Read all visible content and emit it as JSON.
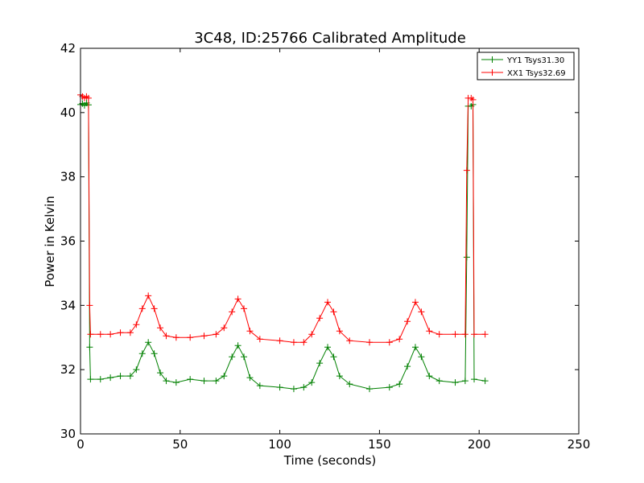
{
  "chart_data": {
    "type": "line",
    "title": "3C48, ID:25766 Calibrated Amplitude",
    "xlabel": "Time (seconds)",
    "ylabel": "Power in Kelvin",
    "xlim": [
      0,
      250
    ],
    "ylim": [
      30,
      42
    ],
    "xticks": [
      "0",
      "50",
      "100",
      "150",
      "200",
      "250"
    ],
    "yticks": [
      "30",
      "32",
      "34",
      "36",
      "38",
      "40",
      "42"
    ],
    "grid": false,
    "legend_position": "top-right",
    "series": [
      {
        "name": "YY1 Tsys31.30",
        "color": "#008000",
        "marker": "+",
        "points": [
          [
            0,
            40.25
          ],
          [
            1,
            40.28
          ],
          [
            2,
            40.22
          ],
          [
            3,
            40.3
          ],
          [
            4,
            40.24
          ],
          [
            4.6,
            32.7
          ],
          [
            5,
            31.7
          ],
          [
            10,
            31.7
          ],
          [
            15,
            31.75
          ],
          [
            20,
            31.8
          ],
          [
            25,
            31.8
          ],
          [
            28,
            32.0
          ],
          [
            31,
            32.5
          ],
          [
            34,
            32.85
          ],
          [
            37,
            32.5
          ],
          [
            40,
            31.9
          ],
          [
            43,
            31.65
          ],
          [
            48,
            31.6
          ],
          [
            55,
            31.7
          ],
          [
            62,
            31.65
          ],
          [
            68,
            31.65
          ],
          [
            72,
            31.8
          ],
          [
            76,
            32.4
          ],
          [
            79,
            32.75
          ],
          [
            82,
            32.4
          ],
          [
            85,
            31.75
          ],
          [
            90,
            31.5
          ],
          [
            100,
            31.45
          ],
          [
            107,
            31.4
          ],
          [
            112,
            31.45
          ],
          [
            116,
            31.6
          ],
          [
            120,
            32.2
          ],
          [
            124,
            32.7
          ],
          [
            127,
            32.4
          ],
          [
            130,
            31.8
          ],
          [
            135,
            31.55
          ],
          [
            145,
            31.4
          ],
          [
            155,
            31.45
          ],
          [
            160,
            31.55
          ],
          [
            164,
            32.1
          ],
          [
            168,
            32.7
          ],
          [
            171,
            32.4
          ],
          [
            175,
            31.8
          ],
          [
            180,
            31.65
          ],
          [
            188,
            31.6
          ],
          [
            193,
            31.65
          ],
          [
            193.8,
            35.5
          ],
          [
            194.5,
            40.2
          ],
          [
            196,
            40.2
          ],
          [
            196.9,
            40.25
          ],
          [
            197.5,
            31.7
          ],
          [
            203,
            31.65
          ]
        ]
      },
      {
        "name": "XX1 Tsys32.69",
        "color": "#ff0000",
        "marker": "+",
        "points": [
          [
            0,
            40.55
          ],
          [
            1,
            40.5
          ],
          [
            2,
            40.45
          ],
          [
            3,
            40.5
          ],
          [
            4,
            40.45
          ],
          [
            4.6,
            34.0
          ],
          [
            5,
            33.1
          ],
          [
            10,
            33.1
          ],
          [
            15,
            33.1
          ],
          [
            20,
            33.15
          ],
          [
            25,
            33.15
          ],
          [
            28,
            33.4
          ],
          [
            31,
            33.9
          ],
          [
            34,
            34.3
          ],
          [
            37,
            33.9
          ],
          [
            40,
            33.3
          ],
          [
            43,
            33.05
          ],
          [
            48,
            33.0
          ],
          [
            55,
            33.0
          ],
          [
            62,
            33.05
          ],
          [
            68,
            33.1
          ],
          [
            72,
            33.3
          ],
          [
            76,
            33.8
          ],
          [
            79,
            34.2
          ],
          [
            82,
            33.9
          ],
          [
            85,
            33.2
          ],
          [
            90,
            32.95
          ],
          [
            100,
            32.9
          ],
          [
            107,
            32.85
          ],
          [
            112,
            32.85
          ],
          [
            116,
            33.1
          ],
          [
            120,
            33.6
          ],
          [
            124,
            34.1
          ],
          [
            127,
            33.8
          ],
          [
            130,
            33.2
          ],
          [
            135,
            32.9
          ],
          [
            145,
            32.85
          ],
          [
            155,
            32.85
          ],
          [
            160,
            32.95
          ],
          [
            164,
            33.5
          ],
          [
            168,
            34.1
          ],
          [
            171,
            33.8
          ],
          [
            175,
            33.2
          ],
          [
            180,
            33.1
          ],
          [
            188,
            33.1
          ],
          [
            193,
            33.1
          ],
          [
            193.8,
            38.2
          ],
          [
            194.5,
            40.45
          ],
          [
            196,
            40.45
          ],
          [
            196.9,
            40.4
          ],
          [
            197.5,
            33.1
          ],
          [
            203,
            33.1
          ]
        ]
      }
    ]
  }
}
